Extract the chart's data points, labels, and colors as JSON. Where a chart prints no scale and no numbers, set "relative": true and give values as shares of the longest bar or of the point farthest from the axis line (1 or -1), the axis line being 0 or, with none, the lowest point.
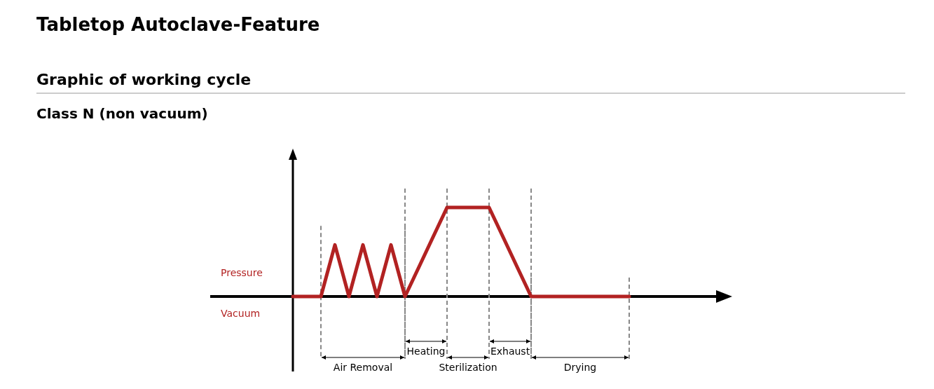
{
  "chart_data": {
    "type": "line",
    "title": "Tabletop Autoclave-Feature",
    "subtitle": "Graphic of working cycle",
    "relative": true,
    "categories": [
      null,
      null,
      null,
      null,
      null,
      null,
      null,
      null,
      null,
      null,
      null,
      null,
      null,
      null,
      null,
      null,
      null,
      null,
      null,
      null,
      null,
      null,
      null,
      null,
      null,
      null,
      null,
      null,
      null,
      null,
      null,
      null
    ],
    "series": [
      {
        "color": "#b22222",
        "values": [
          0,
          0,
          0,
          0.58,
          0,
          0.58,
          0,
          0.58,
          0,
          0.333,
          0.667,
          1,
          1,
          1,
          1,
          0.667,
          0.333,
          0,
          0,
          0,
          0,
          0,
          0,
          0,
          0,
          null,
          null,
          null,
          null,
          null,
          null,
          null
        ]
      }
    ],
    "annotations": [
      "Class N (non vacuum)",
      "Pressure",
      "Vacuum",
      "Air Removal",
      "Heating",
      "Sterilization",
      "Exhaust",
      "Drying"
    ],
    "grid": "x",
    "marker": "none",
    "line_style": "solid"
  }
}
